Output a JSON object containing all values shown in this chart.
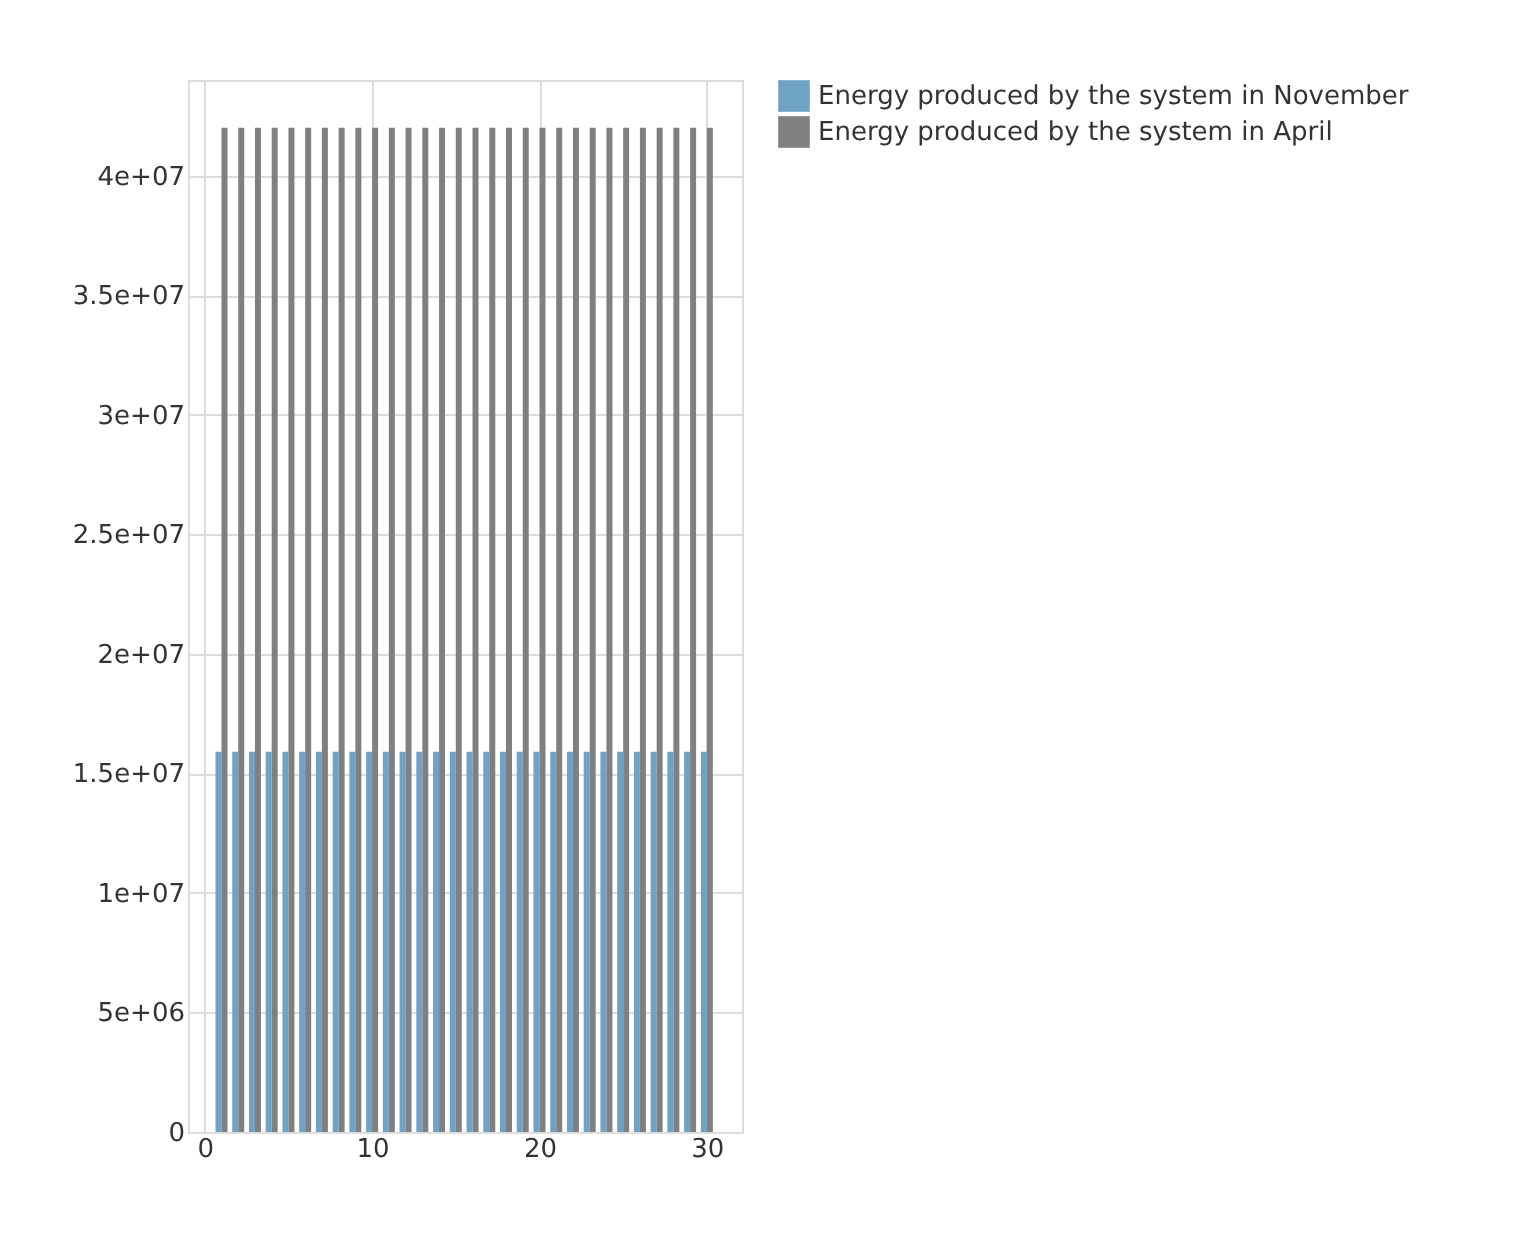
{
  "chart_data": {
    "type": "bar",
    "x": [
      1,
      2,
      3,
      4,
      5,
      6,
      7,
      8,
      9,
      10,
      11,
      12,
      13,
      14,
      15,
      16,
      17,
      18,
      19,
      20,
      21,
      22,
      23,
      24,
      25,
      26,
      27,
      28,
      29,
      30
    ],
    "series": [
      {
        "name": "Energy produced by the system in November",
        "color": "#6fa3c6",
        "values": [
          15900000,
          15900000,
          15900000,
          15900000,
          15900000,
          15900000,
          15900000,
          15900000,
          15900000,
          15900000,
          15900000,
          15900000,
          15900000,
          15900000,
          15900000,
          15900000,
          15900000,
          15900000,
          15900000,
          15900000,
          15900000,
          15900000,
          15900000,
          15900000,
          15900000,
          15900000,
          15900000,
          15900000,
          15900000,
          15900000
        ]
      },
      {
        "name": "Energy produced by the system in April",
        "color": "#808080",
        "values": [
          42000000,
          42000000,
          42000000,
          42000000,
          42000000,
          42000000,
          42000000,
          42000000,
          42000000,
          42000000,
          42000000,
          42000000,
          42000000,
          42000000,
          42000000,
          42000000,
          42000000,
          42000000,
          42000000,
          42000000,
          42000000,
          42000000,
          42000000,
          42000000,
          42000000,
          42000000,
          42000000,
          42000000,
          42000000,
          42000000
        ]
      }
    ],
    "xlim": [
      -1,
      32.1
    ],
    "xticks": [
      0,
      10,
      20,
      30
    ],
    "ylim": [
      0,
      44000000
    ],
    "yticks": [
      0,
      {
        "value": 5000000,
        "label": "5e+06"
      },
      {
        "value": 10000000,
        "label": "1e+07"
      },
      {
        "value": 15000000,
        "label": "1.5e+07"
      },
      {
        "value": 20000000,
        "label": "2e+07"
      },
      {
        "value": 25000000,
        "label": "2.5e+07"
      },
      {
        "value": 30000000,
        "label": "3e+07"
      },
      {
        "value": 35000000,
        "label": "3.5e+07"
      },
      {
        "value": 40000000,
        "label": "4e+07"
      }
    ],
    "grid": true,
    "legend": "top right"
  }
}
